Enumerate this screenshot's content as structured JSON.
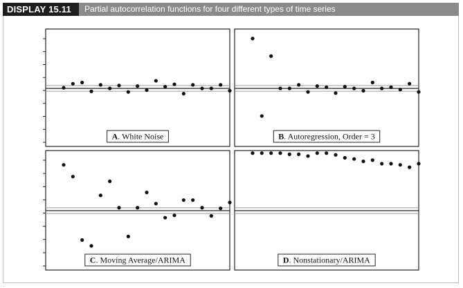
{
  "header": {
    "display_label": "DISPLAY 15.11",
    "title": "Partial autocorrelation functions for four different types of time series"
  },
  "colors": {
    "badge_bg": "#1e1e1e",
    "title_bg": "#8a8a8a",
    "point": "#111111",
    "panel_border": "#222222",
    "bound_line": "#9a9a9a"
  },
  "chart_data": [
    {
      "id": "A",
      "type": "scatter",
      "title": "",
      "label_letter": "A",
      "label_text": ". White Noise",
      "xlabel": "",
      "ylabel": "",
      "grid": false,
      "x": [
        1,
        2,
        3,
        4,
        5,
        6,
        7,
        8,
        9,
        10,
        11,
        12,
        13,
        14,
        15,
        16,
        17,
        18,
        19
      ],
      "values": [
        0.01,
        0.08,
        0.1,
        -0.05,
        0.06,
        0.0,
        0.05,
        -0.06,
        0.04,
        -0.03,
        0.13,
        0.03,
        0.07,
        -0.09,
        0.06,
        0.0,
        0.0,
        0.06,
        -0.04
      ],
      "zero_line": 0,
      "bounds": [
        0.12,
        -0.12
      ],
      "ylim": [
        -1,
        1
      ]
    },
    {
      "id": "B",
      "type": "scatter",
      "title": "",
      "label_letter": "B",
      "label_text": ". Autoregression, Order = 3",
      "xlabel": "",
      "ylabel": "",
      "grid": false,
      "x": [
        1,
        2,
        3,
        4,
        5,
        6,
        7,
        8,
        9,
        10,
        11,
        12,
        13,
        14,
        15,
        16,
        17,
        18,
        19
      ],
      "values": [
        0.85,
        -0.47,
        0.55,
        0.0,
        0.0,
        0.06,
        -0.06,
        0.04,
        0.02,
        -0.08,
        0.03,
        0.0,
        -0.04,
        0.1,
        0.0,
        0.02,
        -0.02,
        0.08,
        -0.06
      ],
      "zero_line": 0,
      "bounds": [
        0.12,
        -0.12
      ],
      "ylim": [
        -1,
        1
      ]
    },
    {
      "id": "C",
      "type": "scatter",
      "title": "",
      "label_letter": "C",
      "label_text": ". Moving Average/ARIMA",
      "xlabel": "",
      "ylabel": "",
      "grid": false,
      "x": [
        1,
        2,
        3,
        4,
        5,
        6,
        7,
        8,
        9,
        10,
        11,
        12,
        13,
        14,
        15,
        16,
        17,
        18,
        19
      ],
      "values": [
        0.78,
        0.58,
        -0.5,
        -0.6,
        0.26,
        0.5,
        0.05,
        -0.44,
        0.05,
        0.31,
        0.12,
        -0.12,
        -0.08,
        0.18,
        0.18,
        0.05,
        -0.09,
        0.04,
        0.14
      ],
      "zero_line": 0,
      "bounds": [
        0.12,
        -0.12
      ],
      "ylim": [
        -1,
        1
      ]
    },
    {
      "id": "D",
      "type": "scatter",
      "title": "",
      "label_letter": "D",
      "label_text": ". Nonstationary/ARIMA",
      "xlabel": "",
      "ylabel": "",
      "grid": false,
      "x": [
        1,
        2,
        3,
        4,
        5,
        6,
        7,
        8,
        9,
        10,
        11,
        12,
        13,
        14,
        15,
        16,
        17,
        18,
        19
      ],
      "values": [
        0.98,
        0.98,
        0.98,
        0.98,
        0.96,
        0.96,
        0.93,
        0.98,
        0.98,
        0.95,
        0.9,
        0.88,
        0.84,
        0.86,
        0.8,
        0.8,
        0.78,
        0.74,
        0.8
      ],
      "zero_line": 0,
      "bounds": [
        0.12,
        -0.12
      ],
      "ylim": [
        -1,
        1
      ]
    }
  ]
}
